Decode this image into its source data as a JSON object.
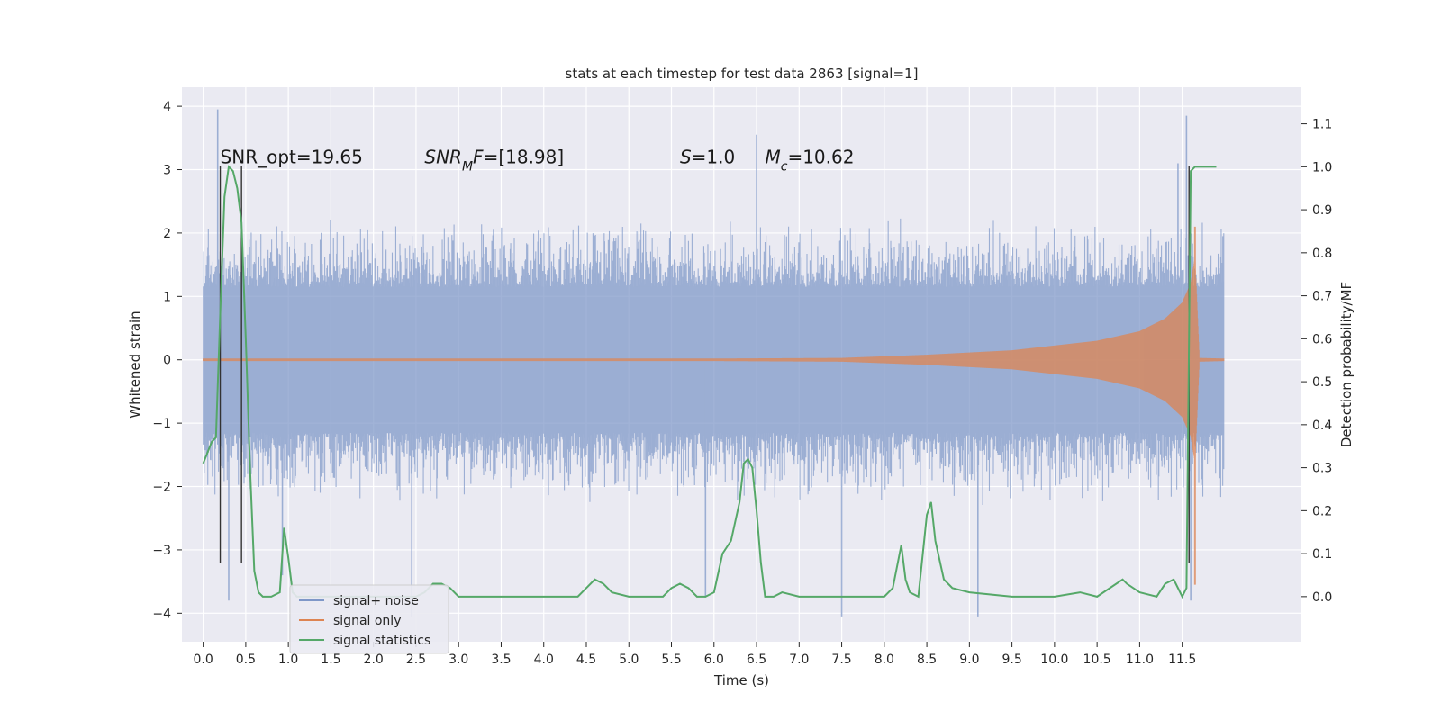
{
  "chart_data": {
    "type": "line",
    "title": "stats at each timestep for test data 2863 [signal=1]",
    "xlabel": "Time (s)",
    "ylabel": "Whitened strain",
    "y2label": "Detection probability/MF",
    "xlim": [
      -0.25,
      12.9
    ],
    "ylim": [
      -4.45,
      4.3
    ],
    "y2lim": [
      -0.105,
      1.185
    ],
    "xticks": [
      0.0,
      0.5,
      1.0,
      1.5,
      2.0,
      2.5,
      3.0,
      3.5,
      4.0,
      4.5,
      5.0,
      5.5,
      6.0,
      6.5,
      7.0,
      7.5,
      8.0,
      8.5,
      9.0,
      9.5,
      10.0,
      10.5,
      11.0,
      11.5
    ],
    "xtick_labels": [
      "0.0",
      "0.5",
      "1.0",
      "1.5",
      "2.0",
      "2.5",
      "3.0",
      "3.5",
      "4.0",
      "4.5",
      "5.0",
      "5.5",
      "6.0",
      "6.5",
      "7.0",
      "7.5",
      "8.0",
      "8.5",
      "9.0",
      "9.5",
      "10.0",
      "10.5",
      "11.0",
      "11.5"
    ],
    "yticks": [
      4,
      3,
      2,
      1,
      0,
      -1,
      -2,
      -3,
      -4
    ],
    "ytick_labels": [
      "4",
      "3",
      "2",
      "1",
      "0",
      "−1",
      "−2",
      "−3",
      "−4"
    ],
    "y2ticks": [
      1.1,
      1.0,
      0.9,
      0.8,
      0.7,
      0.6,
      0.5,
      0.4,
      0.3,
      0.2,
      0.1,
      0.0
    ],
    "y2tick_labels": [
      "1.1",
      "1.0",
      "0.9",
      "0.8",
      "0.7",
      "0.6",
      "0.5",
      "0.4",
      "0.3",
      "0.2",
      "0.1",
      "0.0"
    ],
    "grid": true,
    "legend_placement": "lower-left",
    "colors": {
      "noise": "#7e97c8",
      "signal": "#dd8452",
      "stats": "#55a868",
      "vline": "#333333",
      "background": "#eaeaf2",
      "grid": "#ffffff"
    },
    "series": [
      {
        "name": "signal+ noise",
        "axis": "left",
        "description_type": "noise band",
        "x_range": [
          0.0,
          11.99
        ],
        "core_amplitude": 1.15,
        "typical_extent": 2.3,
        "spikes": [
          {
            "x": 0.17,
            "y": 3.95
          },
          {
            "x": 0.3,
            "y": -3.8
          },
          {
            "x": 0.93,
            "y": -3.4
          },
          {
            "x": 2.45,
            "y": -4.05
          },
          {
            "x": 5.9,
            "y": -3.75
          },
          {
            "x": 6.5,
            "y": 3.55
          },
          {
            "x": 7.5,
            "y": -4.05
          },
          {
            "x": 9.1,
            "y": -4.05
          },
          {
            "x": 11.55,
            "y": 3.85
          },
          {
            "x": 11.6,
            "y": -3.8
          },
          {
            "x": 11.45,
            "y": 3.1
          }
        ]
      },
      {
        "name": "signal only",
        "axis": "left",
        "description_type": "chirp envelope",
        "envelope": [
          [
            0.0,
            0.02
          ],
          [
            6.0,
            0.02
          ],
          [
            7.5,
            0.03
          ],
          [
            8.5,
            0.08
          ],
          [
            9.5,
            0.15
          ],
          [
            10.5,
            0.3
          ],
          [
            11.0,
            0.45
          ],
          [
            11.3,
            0.65
          ],
          [
            11.5,
            0.9
          ],
          [
            11.6,
            1.2
          ],
          [
            11.65,
            1.6
          ],
          [
            11.7,
            0.03
          ],
          [
            11.99,
            0.02
          ]
        ],
        "peak_min": -3.55,
        "peak_max": 2.1
      },
      {
        "name": "signal statistics",
        "axis": "right",
        "x": [
          0.0,
          0.1,
          0.15,
          0.2,
          0.25,
          0.3,
          0.35,
          0.4,
          0.45,
          0.5,
          0.55,
          0.6,
          0.65,
          0.7,
          0.8,
          0.9,
          0.95,
          1.0,
          1.05,
          1.1,
          1.2,
          1.5,
          2.0,
          2.5,
          2.6,
          2.7,
          2.8,
          2.9,
          3.0,
          3.5,
          4.0,
          4.4,
          4.5,
          4.6,
          4.7,
          4.8,
          5.0,
          5.4,
          5.5,
          5.6,
          5.7,
          5.8,
          5.9,
          6.0,
          6.1,
          6.2,
          6.3,
          6.35,
          6.4,
          6.45,
          6.5,
          6.55,
          6.6,
          6.7,
          6.8,
          7.0,
          7.5,
          8.0,
          8.1,
          8.2,
          8.25,
          8.3,
          8.4,
          8.5,
          8.55,
          8.6,
          8.7,
          8.8,
          9.0,
          9.5,
          10.0,
          10.3,
          10.5,
          10.8,
          10.85,
          11.0,
          11.2,
          11.3,
          11.4,
          11.5,
          11.55,
          11.6,
          11.65,
          11.7,
          11.8,
          11.9
        ],
        "values": [
          0.31,
          0.36,
          0.37,
          0.66,
          0.93,
          1.0,
          0.99,
          0.95,
          0.87,
          0.6,
          0.3,
          0.06,
          0.01,
          0.0,
          0.0,
          0.01,
          0.16,
          0.09,
          0.01,
          0.0,
          0.0,
          0.0,
          0.0,
          0.0,
          0.01,
          0.03,
          0.03,
          0.02,
          0.0,
          0.0,
          0.0,
          0.0,
          0.02,
          0.04,
          0.03,
          0.01,
          0.0,
          0.0,
          0.02,
          0.03,
          0.02,
          0.0,
          0.0,
          0.01,
          0.1,
          0.13,
          0.22,
          0.31,
          0.32,
          0.3,
          0.2,
          0.08,
          0.0,
          0.0,
          0.01,
          0.0,
          0.0,
          0.0,
          0.02,
          0.12,
          0.04,
          0.01,
          0.0,
          0.19,
          0.22,
          0.13,
          0.04,
          0.02,
          0.01,
          0.0,
          0.0,
          0.01,
          0.0,
          0.04,
          0.03,
          0.01,
          0.0,
          0.03,
          0.04,
          0.0,
          0.02,
          0.99,
          1.0,
          1.0,
          1.0,
          1.0
        ]
      }
    ],
    "vlines": [
      {
        "x": 0.2,
        "y_top": 3.05,
        "y_bottom": -3.2
      },
      {
        "x": 0.45,
        "y_top": 3.05,
        "y_bottom": -3.2
      },
      {
        "x": 11.58,
        "y_top": 3.05,
        "y_bottom": -3.2
      }
    ],
    "annotations": [
      {
        "parts": [
          {
            "text": "SNR_opt=19.65",
            "italic": false
          }
        ],
        "x": 0.2,
        "y": 3.1
      },
      {
        "parts": [
          {
            "text": "SNR",
            "italic": true
          },
          {
            "text": "M",
            "italic": true,
            "sub": true
          },
          {
            "text": "F",
            "italic": true
          },
          {
            "text": "=[18.98]",
            "italic": false
          }
        ],
        "x": 2.6,
        "y": 3.1
      },
      {
        "parts": [
          {
            "text": "S",
            "italic": true
          },
          {
            "text": "=1.0",
            "italic": false
          }
        ],
        "x": 5.6,
        "y": 3.1
      },
      {
        "parts": [
          {
            "text": "M",
            "italic": true
          },
          {
            "text": "c",
            "italic": true,
            "sub": true
          },
          {
            "text": "=10.62",
            "italic": false
          }
        ],
        "x": 6.6,
        "y": 3.1
      }
    ],
    "legend": [
      "signal+ noise",
      "signal only",
      "signal statistics"
    ]
  }
}
